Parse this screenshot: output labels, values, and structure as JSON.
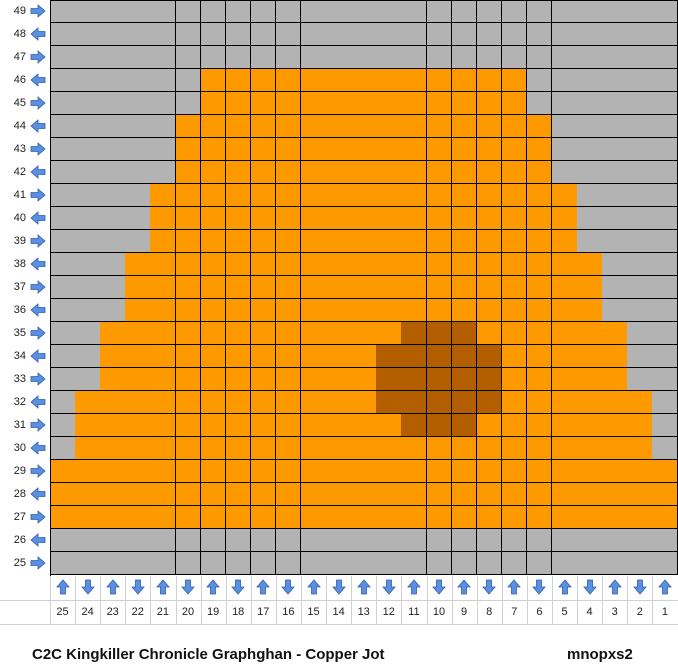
{
  "colors": {
    "background": "#b3b3b3",
    "main": "#ff9900",
    "dark": "#b35f00",
    "arrow": "#5b8fe0"
  },
  "row_labels": [
    "49",
    "48",
    "47",
    "46",
    "45",
    "44",
    "43",
    "42",
    "41",
    "40",
    "39",
    "38",
    "37",
    "36",
    "35",
    "34",
    "33",
    "32",
    "31",
    "30",
    "29",
    "28",
    "27",
    "26",
    "25"
  ],
  "col_labels": [
    "25",
    "24",
    "23",
    "22",
    "21",
    "20",
    "19",
    "18",
    "17",
    "16",
    "15",
    "14",
    "13",
    "12",
    "11",
    "10",
    "9",
    "8",
    "7",
    "6",
    "5",
    "4",
    "3",
    "2",
    "1"
  ],
  "row_arrows": [
    "right",
    "left",
    "right",
    "left",
    "right",
    "left",
    "right",
    "left",
    "right",
    "left",
    "right",
    "left",
    "right",
    "left",
    "right",
    "left",
    "right",
    "left",
    "right",
    "left",
    "right",
    "left",
    "right",
    "left",
    "right"
  ],
  "col_arrows": [
    "up",
    "down",
    "up",
    "down",
    "up",
    "down",
    "up",
    "down",
    "up",
    "down",
    "up",
    "down",
    "up",
    "down",
    "up",
    "down",
    "up",
    "down",
    "up",
    "down",
    "up",
    "down",
    "up",
    "down",
    "up"
  ],
  "pattern": [
    "GGGGGGGGGGGGGGGGGGGGGGGGG",
    "GGGGGGGGGGGGGGGGGGGGGGGGG",
    "GGGGGGGGGGGGGGGGGGGGGGGGG",
    "GGGGGGOOOOOOOOOOOOOGGGGGG",
    "GGGGGGOOOOOOOOOOOOOGGGGGG",
    "GGGGGOOOOOOOOOOOOOOOGGGGG",
    "GGGGGOOOOOOOOOOOOOOOGGGGG",
    "GGGGGOOOOOOOOOOOOOOOGGGGG",
    "GGGGOOOOOOOOOOOOOOOOOGGGG",
    "GGGGOOOOOOOOOOOOOOOOOGGGG",
    "GGGGOOOOOOOOOOOOOOOOOGGGG",
    "GGGOOOOOOOOOOOOOOOOOOOGGG",
    "GGGOOOOOOOOOOOOOOOOOOOGGG",
    "GGGOOOOOOOOOOOOOOOOOOOGGG",
    "GGOOOOOOOOOOOOOOOOOOOOOGG",
    "GGOOOOOOOOOOOOOOOOOOOOOGG",
    "GGOOOOOOOOOOOOOOOOOOOOOGG",
    "GOOOOOOOOOOOOOOOOOOOOOOOG",
    "GOOOOOOOOOOOOOOOOOOOOOOOG",
    "GOOOOOOOOOOOOOOOOOOOOOOOG",
    "OOOOOOOOOOOOOOOOOOOOOOOOO",
    "OOOOOOOOOOOOOOOOOOOOOOOOO",
    "OOOOOOOOOOOOOOOOOOOOOOOOO",
    "GGGGGGGGGGGGGGGGGGGGGGGGG",
    "GGGGGGGGGGGGGGGGGGGGGGGGG"
  ],
  "dark_cells": [
    [
      14,
      14
    ],
    [
      14,
      15
    ],
    [
      14,
      16
    ],
    [
      15,
      13
    ],
    [
      15,
      14
    ],
    [
      15,
      15
    ],
    [
      15,
      16
    ],
    [
      15,
      17
    ],
    [
      16,
      13
    ],
    [
      16,
      14
    ],
    [
      16,
      15
    ],
    [
      16,
      16
    ],
    [
      16,
      17
    ],
    [
      17,
      13
    ],
    [
      17,
      14
    ],
    [
      17,
      15
    ],
    [
      17,
      16
    ],
    [
      17,
      17
    ],
    [
      18,
      14
    ],
    [
      18,
      15
    ],
    [
      18,
      16
    ]
  ],
  "footer": {
    "title": "C2C Kingkiller Chronicle Graphghan - Copper Jot",
    "user": "mnopxs2"
  }
}
